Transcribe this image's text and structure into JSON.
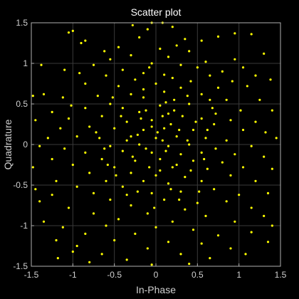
{
  "colors": {
    "background": "#000000",
    "axes_background": "#000000",
    "axes_edge": "#b0b0b0",
    "grid": "#3a3a3a",
    "marker": "#ffff00",
    "text": "#d0d0d0",
    "title": "#ffffff"
  },
  "chart_data": {
    "type": "scatter",
    "title": "Scatter plot",
    "xlabel": "In-Phase",
    "ylabel": "Quadrature",
    "xlim": [
      -1.5,
      1.5
    ],
    "ylim": [
      -1.5,
      1.5
    ],
    "xticks": [
      -1.5,
      -1,
      -0.5,
      0,
      0.5,
      1,
      1.5
    ],
    "yticks": [
      -1.5,
      -1,
      -0.5,
      0,
      0.5,
      1,
      1.5
    ],
    "xtick_labels": [
      "-1.5",
      "-1",
      "-0.5",
      "0",
      "0.5",
      "1",
      "1.5"
    ],
    "ytick_labels": [
      "-1.5",
      "-1",
      "-0.5",
      "0",
      "0.5",
      "1",
      "1.5"
    ],
    "grid": true,
    "marker": "filled-dot",
    "series": [
      {
        "points": [
          [
            -0.05,
            1.5
          ],
          [
            0.08,
            1.5
          ],
          [
            -0.28,
            1.47
          ],
          [
            -0.1,
            1.42
          ],
          [
            0.2,
            1.45
          ],
          [
            -1.05,
            1.38
          ],
          [
            -1.0,
            1.4
          ],
          [
            1.15,
            1.36
          ],
          [
            0.95,
            1.37
          ],
          [
            0.75,
            1.33
          ],
          [
            -0.9,
            1.25
          ],
          [
            -0.85,
            1.28
          ],
          [
            -0.2,
            1.32
          ],
          [
            0.35,
            1.3
          ],
          [
            0.55,
            1.28
          ],
          [
            0.25,
            1.22
          ],
          [
            -0.45,
            1.2
          ],
          [
            0.05,
            1.18
          ],
          [
            -0.62,
            1.15
          ],
          [
            0.4,
            1.15
          ],
          [
            -1.38,
            0.98
          ],
          [
            -0.55,
            1.05
          ],
          [
            -0.3,
            1.1
          ],
          [
            0.15,
            1.08
          ],
          [
            0.6,
            1.02
          ],
          [
            0.95,
            1.05
          ],
          [
            1.3,
            1.12
          ],
          [
            -0.05,
            1.0
          ],
          [
            0.3,
            0.98
          ],
          [
            -0.75,
            0.98
          ],
          [
            -1.1,
            0.92
          ],
          [
            -0.92,
            0.88
          ],
          [
            -0.4,
            0.92
          ],
          [
            0.5,
            0.95
          ],
          [
            0.8,
            0.9
          ],
          [
            1.05,
            0.95
          ],
          [
            -0.15,
            0.88
          ],
          [
            0.1,
            0.86
          ],
          [
            0.65,
            0.85
          ],
          [
            0.2,
            0.82
          ],
          [
            -0.6,
            0.85
          ],
          [
            -0.25,
            0.8
          ],
          [
            0.42,
            0.78
          ],
          [
            1.2,
            0.85
          ],
          [
            0.92,
            0.78
          ],
          [
            -0.85,
            0.75
          ],
          [
            -1.48,
            0.6
          ],
          [
            -1.35,
            0.62
          ],
          [
            -1.12,
            0.58
          ],
          [
            -0.45,
            0.72
          ],
          [
            0.0,
            0.75
          ],
          [
            0.3,
            0.7
          ],
          [
            0.75,
            0.7
          ],
          [
            1.38,
            0.8
          ],
          [
            1.1,
            0.72
          ],
          [
            -1.02,
            0.48
          ],
          [
            -0.7,
            0.6
          ],
          [
            -0.3,
            0.62
          ],
          [
            0.1,
            0.65
          ],
          [
            0.55,
            0.62
          ],
          [
            -0.15,
            0.58
          ],
          [
            0.22,
            0.55
          ],
          [
            0.85,
            0.55
          ],
          [
            1.25,
            0.55
          ],
          [
            -0.55,
            0.5
          ],
          [
            -0.85,
            0.45
          ],
          [
            -1.25,
            0.4
          ],
          [
            -0.4,
            0.45
          ],
          [
            0.05,
            0.48
          ],
          [
            0.4,
            0.5
          ],
          [
            0.68,
            0.45
          ],
          [
            1.02,
            0.42
          ],
          [
            1.4,
            0.42
          ],
          [
            -0.2,
            0.4
          ],
          [
            0.15,
            0.38
          ],
          [
            -0.65,
            0.35
          ],
          [
            -1.05,
            0.32
          ],
          [
            -1.45,
            0.3
          ],
          [
            0.32,
            0.35
          ],
          [
            0.55,
            0.32
          ],
          [
            0.9,
            0.3
          ],
          [
            1.2,
            0.28
          ],
          [
            -0.35,
            0.28
          ],
          [
            -0.05,
            0.3
          ],
          [
            0.7,
            0.25
          ],
          [
            -0.8,
            0.22
          ],
          [
            -1.15,
            0.2
          ],
          [
            -0.5,
            0.2
          ],
          [
            -0.15,
            0.18
          ],
          [
            0.1,
            0.2
          ],
          [
            0.45,
            0.18
          ],
          [
            1.05,
            0.18
          ],
          [
            1.32,
            0.15
          ],
          [
            -1.3,
            0.08
          ],
          [
            -0.95,
            0.1
          ],
          [
            -0.68,
            0.08
          ],
          [
            -0.3,
            0.1
          ],
          [
            0.0,
            0.08
          ],
          [
            0.25,
            0.1
          ],
          [
            0.6,
            0.08
          ],
          [
            0.85,
            0.05
          ],
          [
            1.45,
            0.08
          ],
          [
            -1.4,
            -0.02
          ],
          [
            -1.1,
            -0.05
          ],
          [
            -0.55,
            -0.02
          ],
          [
            -0.2,
            0.0
          ],
          [
            0.15,
            -0.02
          ],
          [
            0.4,
            0.0
          ],
          [
            0.72,
            -0.05
          ],
          [
            1.15,
            -0.02
          ],
          [
            -0.85,
            -0.1
          ],
          [
            -0.4,
            -0.08
          ],
          [
            -0.05,
            -0.1
          ],
          [
            0.3,
            -0.12
          ],
          [
            0.55,
            -0.1
          ],
          [
            0.95,
            -0.12
          ],
          [
            1.3,
            -0.15
          ],
          [
            -1.25,
            -0.18
          ],
          [
            -0.65,
            -0.18
          ],
          [
            -0.25,
            -0.2
          ],
          [
            0.05,
            -0.18
          ],
          [
            0.45,
            -0.2
          ],
          [
            0.8,
            -0.22
          ],
          [
            -1.48,
            -0.28
          ],
          [
            -1.0,
            -0.25
          ],
          [
            -0.5,
            -0.28
          ],
          [
            0.2,
            -0.28
          ],
          [
            0.62,
            -0.3
          ],
          [
            1.05,
            -0.28
          ],
          [
            1.4,
            -0.3
          ],
          [
            -0.8,
            -0.35
          ],
          [
            -0.3,
            -0.35
          ],
          [
            0.0,
            -0.38
          ],
          [
            0.35,
            -0.4
          ],
          [
            0.9,
            -0.38
          ],
          [
            -1.2,
            -0.45
          ],
          [
            -0.6,
            -0.45
          ],
          [
            -0.15,
            -0.45
          ],
          [
            0.15,
            -0.48
          ],
          [
            0.55,
            -0.45
          ],
          [
            1.2,
            -0.45
          ],
          [
            -1.45,
            -0.55
          ],
          [
            -0.95,
            -0.52
          ],
          [
            -0.4,
            -0.52
          ],
          [
            0.7,
            -0.55
          ],
          [
            1.35,
            -0.6
          ],
          [
            -1.25,
            -0.62
          ],
          [
            -0.75,
            -0.6
          ],
          [
            -0.05,
            -0.6
          ],
          [
            0.3,
            -0.58
          ],
          [
            1.0,
            -0.62
          ],
          [
            -1.4,
            -0.7
          ],
          [
            -0.55,
            -0.68
          ],
          [
            0.1,
            -0.68
          ],
          [
            0.5,
            -0.72
          ],
          [
            0.85,
            -0.7
          ],
          [
            -1.05,
            -0.78
          ],
          [
            -0.3,
            -0.75
          ],
          [
            0.35,
            -0.8
          ],
          [
            1.15,
            -0.78
          ],
          [
            -0.75,
            -0.85
          ],
          [
            -0.1,
            -0.85
          ],
          [
            0.6,
            -0.88
          ],
          [
            1.3,
            -0.88
          ],
          [
            -1.35,
            -0.95
          ],
          [
            -0.45,
            -0.92
          ],
          [
            0.2,
            -0.95
          ],
          [
            0.95,
            -0.95
          ],
          [
            -1.12,
            -1.02
          ],
          [
            -0.6,
            -1.0
          ],
          [
            0.0,
            -1.02
          ],
          [
            0.45,
            -1.05
          ],
          [
            1.4,
            -1.0
          ],
          [
            -0.85,
            -1.1
          ],
          [
            -0.25,
            -1.1
          ],
          [
            0.75,
            -1.12
          ],
          [
            1.15,
            -1.08
          ],
          [
            -1.2,
            -1.18
          ],
          [
            -0.5,
            -1.18
          ],
          [
            0.15,
            -1.2
          ],
          [
            0.55,
            -1.22
          ],
          [
            1.35,
            -1.2
          ],
          [
            -0.95,
            -1.25
          ],
          [
            -0.1,
            -1.28
          ],
          [
            0.9,
            -1.28
          ],
          [
            -1.0,
            -1.32
          ],
          [
            -0.65,
            -1.35
          ],
          [
            0.3,
            -1.35
          ],
          [
            1.08,
            -1.35
          ],
          [
            -1.18,
            -1.4
          ],
          [
            -0.35,
            -1.42
          ],
          [
            0.65,
            -1.4
          ],
          [
            -0.05,
            -1.48
          ],
          [
            0.4,
            -1.47
          ],
          [
            -0.8,
            -1.45
          ],
          [
            -0.12,
            0.42
          ],
          [
            0.08,
            0.35
          ],
          [
            -0.05,
            0.22
          ],
          [
            0.18,
            0.25
          ],
          [
            0.28,
            0.18
          ],
          [
            -0.22,
            0.12
          ],
          [
            0.08,
            0.05
          ],
          [
            -0.12,
            -0.05
          ],
          [
            0.12,
            -0.08
          ],
          [
            0.25,
            -0.25
          ],
          [
            -0.08,
            -0.28
          ],
          [
            0.05,
            -0.32
          ],
          [
            -0.28,
            -0.15
          ],
          [
            0.38,
            0.05
          ],
          [
            -0.35,
            0.05
          ],
          [
            0.02,
            0.15
          ],
          [
            -0.18,
            0.32
          ],
          [
            0.22,
            0.42
          ],
          [
            -0.42,
            0.35
          ],
          [
            0.48,
            0.28
          ],
          [
            -0.48,
            -0.38
          ],
          [
            0.42,
            -0.32
          ],
          [
            0.18,
            -0.55
          ],
          [
            -0.22,
            -0.58
          ],
          [
            0.62,
            0.18
          ],
          [
            -0.62,
            -0.05
          ],
          [
            0.58,
            -0.18
          ],
          [
            -0.15,
            0.68
          ],
          [
            0.38,
            0.6
          ],
          [
            -0.35,
            -0.62
          ],
          [
            0.12,
            0.52
          ],
          [
            -0.52,
            0.58
          ],
          [
            0.72,
            0.38
          ],
          [
            0.28,
            -0.68
          ],
          [
            -0.72,
            0.15
          ],
          [
            -0.02,
            -0.78
          ],
          [
            0.52,
            -0.58
          ],
          [
            -0.58,
            -0.25
          ],
          [
            0.65,
            0.55
          ],
          [
            -0.08,
            0.95
          ]
        ]
      }
    ]
  }
}
